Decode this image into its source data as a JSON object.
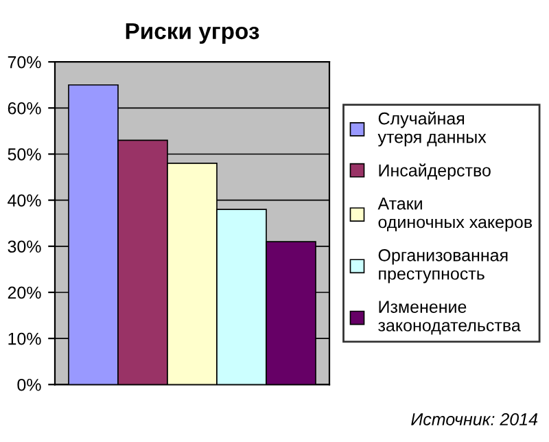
{
  "chart_data": {
    "type": "bar",
    "title": "Риски угроз",
    "categories": [
      null
    ],
    "series": [
      {
        "name": "Случайная утеря данных",
        "color": "#9999ff",
        "values": [
          65
        ]
      },
      {
        "name": "Инсайдерство",
        "color": "#993366",
        "values": [
          53
        ]
      },
      {
        "name": "Атаки одиночных хакеров",
        "color": "#ffffcc",
        "values": [
          48
        ]
      },
      {
        "name": "Организованная преступность",
        "color": "#ccffff",
        "values": [
          38
        ]
      },
      {
        "name": "Изменение законодательства",
        "color": "#660066",
        "values": [
          31
        ]
      }
    ],
    "ylim": [
      0,
      70
    ],
    "yticks": [
      {
        "value": 0,
        "label": "0%"
      },
      {
        "value": 10,
        "label": "10%"
      },
      {
        "value": 20,
        "label": "20%"
      },
      {
        "value": 30,
        "label": "30%"
      },
      {
        "value": 40,
        "label": "40%"
      },
      {
        "value": 50,
        "label": "50%"
      },
      {
        "value": 60,
        "label": "60%"
      },
      {
        "value": 70,
        "label": "70%"
      }
    ],
    "grid": "y",
    "legend": "right",
    "annotations": [
      "Источник: 2014"
    ]
  }
}
